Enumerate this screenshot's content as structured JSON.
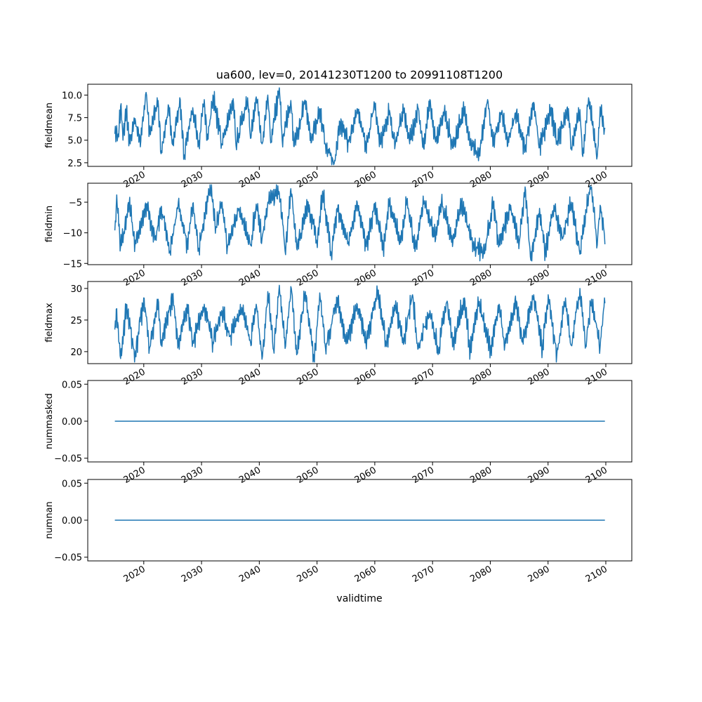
{
  "figure_title": "ua600, lev=0, 20141230T1200 to 20991108T1200",
  "xlabel": "validtime",
  "x_ticks": [
    "2020",
    "2030",
    "2040",
    "2050",
    "2060",
    "2070",
    "2080",
    "2090",
    "2100"
  ],
  "line_color": "#1f77b4",
  "chart_data": [
    {
      "type": "line",
      "ylabel": "fieldmean",
      "x_range": [
        2014.99,
        2099.85
      ],
      "xlim": [
        2010.3,
        2104.5
      ],
      "ylim": [
        2.1,
        11.2
      ],
      "y_ticks": [
        2.5,
        5.0,
        7.5,
        10.0
      ],
      "y_tick_labels": [
        "2.5",
        "5.0",
        "7.5",
        "10.0"
      ],
      "n_points": 1020,
      "sampled_points": [
        [
          2015.0,
          5.7
        ],
        [
          2015.5,
          5.3
        ],
        [
          2016.0,
          8.8
        ],
        [
          2016.4,
          5.0
        ],
        [
          2017.0,
          8.4
        ],
        [
          2017.5,
          4.8
        ],
        [
          2018.5,
          7.4
        ],
        [
          2019.5,
          4.9
        ],
        [
          2020.4,
          10.3
        ],
        [
          2021.0,
          5.8
        ],
        [
          2022.5,
          9.4
        ],
        [
          2023.0,
          3.5
        ],
        [
          2024.3,
          8.8
        ],
        [
          2025.0,
          4.5
        ],
        [
          2026.3,
          9.5
        ],
        [
          2027.0,
          3.4
        ],
        [
          2028.5,
          8.6
        ],
        [
          2029.5,
          4.7
        ],
        [
          2030.5,
          9.5
        ],
        [
          2031.0,
          5.0
        ],
        [
          2032.0,
          10.0
        ],
        [
          2033.5,
          4.6
        ],
        [
          2035.5,
          9.6
        ],
        [
          2036.0,
          4.4
        ],
        [
          2038.0,
          9.7
        ],
        [
          2038.5,
          5.2
        ],
        [
          2039.5,
          9.8
        ],
        [
          2040.5,
          4.6
        ],
        [
          2041.5,
          10.0
        ],
        [
          2042.0,
          4.7
        ],
        [
          2043.5,
          10.8
        ],
        [
          2044.0,
          5.0
        ],
        [
          2045.5,
          9.4
        ],
        [
          2046.0,
          4.3
        ],
        [
          2048.0,
          9.4
        ],
        [
          2049.0,
          4.7
        ],
        [
          2050.5,
          8.5
        ],
        [
          2051.5,
          4.5
        ],
        [
          2053.0,
          2.4
        ],
        [
          2054.0,
          7.0
        ],
        [
          2055.5,
          4.8
        ],
        [
          2057.0,
          8.5
        ],
        [
          2058.5,
          4.3
        ],
        [
          2060.0,
          9.0
        ],
        [
          2061.0,
          4.6
        ],
        [
          2062.5,
          8.3
        ],
        [
          2063.5,
          4.5
        ],
        [
          2065.0,
          8.5
        ],
        [
          2066.0,
          4.6
        ],
        [
          2067.5,
          8.5
        ],
        [
          2068.5,
          4.0
        ],
        [
          2069.5,
          9.5
        ],
        [
          2070.5,
          4.8
        ],
        [
          2072.0,
          8.2
        ],
        [
          2073.5,
          4.1
        ],
        [
          2075.5,
          8.2
        ],
        [
          2076.5,
          4.5
        ],
        [
          2078.0,
          3.3
        ],
        [
          2079.5,
          9.5
        ],
        [
          2080.5,
          4.5
        ],
        [
          2082.0,
          8.3
        ],
        [
          2083.0,
          4.4
        ],
        [
          2084.5,
          8.2
        ],
        [
          2086.0,
          4.0
        ],
        [
          2087.5,
          9.2
        ],
        [
          2088.5,
          4.2
        ],
        [
          2090.5,
          8.6
        ],
        [
          2091.5,
          4.8
        ],
        [
          2093.5,
          8.5
        ],
        [
          2094.0,
          4.2
        ],
        [
          2095.5,
          8.4
        ],
        [
          2096.0,
          3.2
        ],
        [
          2097.0,
          9.7
        ],
        [
          2098.5,
          3.2
        ],
        [
          2099.0,
          8.7
        ],
        [
          2099.8,
          6.2
        ]
      ]
    },
    {
      "type": "line",
      "ylabel": "fieldmin",
      "x_range": [
        2014.99,
        2099.85
      ],
      "xlim": [
        2010.3,
        2104.5
      ],
      "ylim": [
        -15.2,
        -1.9
      ],
      "y_ticks": [
        -15,
        -10,
        -5
      ],
      "y_tick_labels": [
        "−15",
        "−10",
        "−5"
      ],
      "n_points": 1020,
      "sampled_points": [
        [
          2015.0,
          -9.6
        ],
        [
          2015.3,
          -3.8
        ],
        [
          2016.0,
          -12.2
        ],
        [
          2017.5,
          -5.2
        ],
        [
          2018.5,
          -11.8
        ],
        [
          2020.5,
          -5.3
        ],
        [
          2022.0,
          -11.0
        ],
        [
          2023.0,
          -5.8
        ],
        [
          2024.5,
          -13.2
        ],
        [
          2026.0,
          -5.0
        ],
        [
          2027.5,
          -12.0
        ],
        [
          2028.5,
          -5.2
        ],
        [
          2029.5,
          -12.5
        ],
        [
          2031.5,
          -2.0
        ],
        [
          2032.5,
          -9.0
        ],
        [
          2033.5,
          -5.0
        ],
        [
          2034.5,
          -12.5
        ],
        [
          2036.5,
          -6.0
        ],
        [
          2038.5,
          -12.0
        ],
        [
          2039.5,
          -5.3
        ],
        [
          2040.5,
          -11.0
        ],
        [
          2041.5,
          -5.0
        ],
        [
          2043.5,
          -3.5
        ],
        [
          2044.5,
          -13.0
        ],
        [
          2045.5,
          -2.8
        ],
        [
          2046.5,
          -12.5
        ],
        [
          2048.5,
          -5.0
        ],
        [
          2050.0,
          -11.5
        ],
        [
          2051.0,
          -3.2
        ],
        [
          2052.5,
          -13.5
        ],
        [
          2053.5,
          -6.0
        ],
        [
          2055.5,
          -11.8
        ],
        [
          2057.0,
          -5.0
        ],
        [
          2058.5,
          -12.0
        ],
        [
          2060.0,
          -5.2
        ],
        [
          2061.5,
          -12.5
        ],
        [
          2062.5,
          -5.0
        ],
        [
          2064.5,
          -11.5
        ],
        [
          2065.5,
          -4.8
        ],
        [
          2067.0,
          -12.5
        ],
        [
          2068.5,
          -5.0
        ],
        [
          2070.5,
          -11.0
        ],
        [
          2071.5,
          -5.0
        ],
        [
          2073.5,
          -11.5
        ],
        [
          2075.0,
          -5.0
        ],
        [
          2077.0,
          -12.0
        ],
        [
          2079.0,
          -13.3
        ],
        [
          2080.5,
          -5.0
        ],
        [
          2081.5,
          -12.0
        ],
        [
          2083.5,
          -5.5
        ],
        [
          2085.0,
          -11.5
        ],
        [
          2086.0,
          -2.5
        ],
        [
          2087.0,
          -14.5
        ],
        [
          2088.5,
          -6.0
        ],
        [
          2089.5,
          -13.0
        ],
        [
          2091.0,
          -5.5
        ],
        [
          2092.5,
          -11.0
        ],
        [
          2094.0,
          -5.0
        ],
        [
          2095.5,
          -13.5
        ],
        [
          2097.0,
          -4.0
        ],
        [
          2097.5,
          -2.5
        ],
        [
          2098.5,
          -12.0
        ],
        [
          2099.0,
          -5.5
        ],
        [
          2099.8,
          -10.5
        ]
      ]
    },
    {
      "type": "line",
      "ylabel": "fieldmax",
      "x_range": [
        2014.99,
        2099.85
      ],
      "xlim": [
        2010.3,
        2104.5
      ],
      "ylim": [
        18.1,
        31.1
      ],
      "y_ticks": [
        20,
        25,
        30
      ],
      "y_tick_labels": [
        "20",
        "25",
        "30"
      ],
      "n_points": 1020,
      "sampled_points": [
        [
          2015.0,
          23.5
        ],
        [
          2015.3,
          26.8
        ],
        [
          2016.0,
          18.9
        ],
        [
          2017.0,
          27.5
        ],
        [
          2018.5,
          19.5
        ],
        [
          2020.0,
          28.5
        ],
        [
          2021.0,
          20.5
        ],
        [
          2022.5,
          28.3
        ],
        [
          2023.0,
          21.0
        ],
        [
          2025.0,
          29.0
        ],
        [
          2026.0,
          21.0
        ],
        [
          2027.5,
          27.5
        ],
        [
          2028.5,
          21.5
        ],
        [
          2030.5,
          27.5
        ],
        [
          2032.0,
          21.5
        ],
        [
          2033.5,
          26.5
        ],
        [
          2035.0,
          22.5
        ],
        [
          2037.0,
          27.0
        ],
        [
          2038.5,
          21.5
        ],
        [
          2039.5,
          27.5
        ],
        [
          2040.5,
          18.8
        ],
        [
          2041.5,
          29.5
        ],
        [
          2042.5,
          20.3
        ],
        [
          2043.5,
          30.5
        ],
        [
          2044.5,
          20.5
        ],
        [
          2045.5,
          30.3
        ],
        [
          2046.5,
          19.5
        ],
        [
          2048.0,
          29.5
        ],
        [
          2049.5,
          18.8
        ],
        [
          2050.5,
          29.3
        ],
        [
          2051.5,
          20.5
        ],
        [
          2053.5,
          28.5
        ],
        [
          2055.0,
          21.5
        ],
        [
          2057.0,
          27.5
        ],
        [
          2058.5,
          21.5
        ],
        [
          2060.5,
          29.5
        ],
        [
          2062.0,
          21.0
        ],
        [
          2063.5,
          27.0
        ],
        [
          2065.0,
          21.5
        ],
        [
          2066.5,
          29.0
        ],
        [
          2067.5,
          20.5
        ],
        [
          2069.5,
          26.5
        ],
        [
          2071.0,
          20.0
        ],
        [
          2072.5,
          28.0
        ],
        [
          2073.5,
          21.0
        ],
        [
          2075.5,
          28.5
        ],
        [
          2076.5,
          20.0
        ],
        [
          2078.0,
          27.8
        ],
        [
          2080.0,
          20.5
        ],
        [
          2081.5,
          27.5
        ],
        [
          2082.5,
          21.0
        ],
        [
          2084.5,
          28.0
        ],
        [
          2085.5,
          21.5
        ],
        [
          2087.5,
          29.0
        ],
        [
          2089.0,
          20.5
        ],
        [
          2090.0,
          29.0
        ],
        [
          2091.5,
          19.5
        ],
        [
          2093.0,
          28.5
        ],
        [
          2094.0,
          21.0
        ],
        [
          2095.5,
          30.0
        ],
        [
          2096.5,
          21.0
        ],
        [
          2097.5,
          28.3
        ],
        [
          2099.0,
          20.8
        ],
        [
          2099.8,
          28.5
        ]
      ]
    },
    {
      "type": "line",
      "ylabel": "nummasked",
      "x": [
        2014.99,
        2099.85
      ],
      "values": [
        0.0,
        0.0
      ],
      "xlim": [
        2010.3,
        2104.5
      ],
      "ylim": [
        -0.055,
        0.055
      ],
      "y_ticks": [
        -0.05,
        0.0,
        0.05
      ],
      "y_tick_labels": [
        "−0.05",
        "0.00",
        "0.05"
      ]
    },
    {
      "type": "line",
      "ylabel": "numnan",
      "x": [
        2014.99,
        2099.85
      ],
      "values": [
        0.0,
        0.0
      ],
      "xlim": [
        2010.3,
        2104.5
      ],
      "ylim": [
        -0.055,
        0.055
      ],
      "y_ticks": [
        -0.05,
        0.0,
        0.05
      ],
      "y_tick_labels": [
        "−0.05",
        "0.00",
        "0.05"
      ]
    }
  ]
}
